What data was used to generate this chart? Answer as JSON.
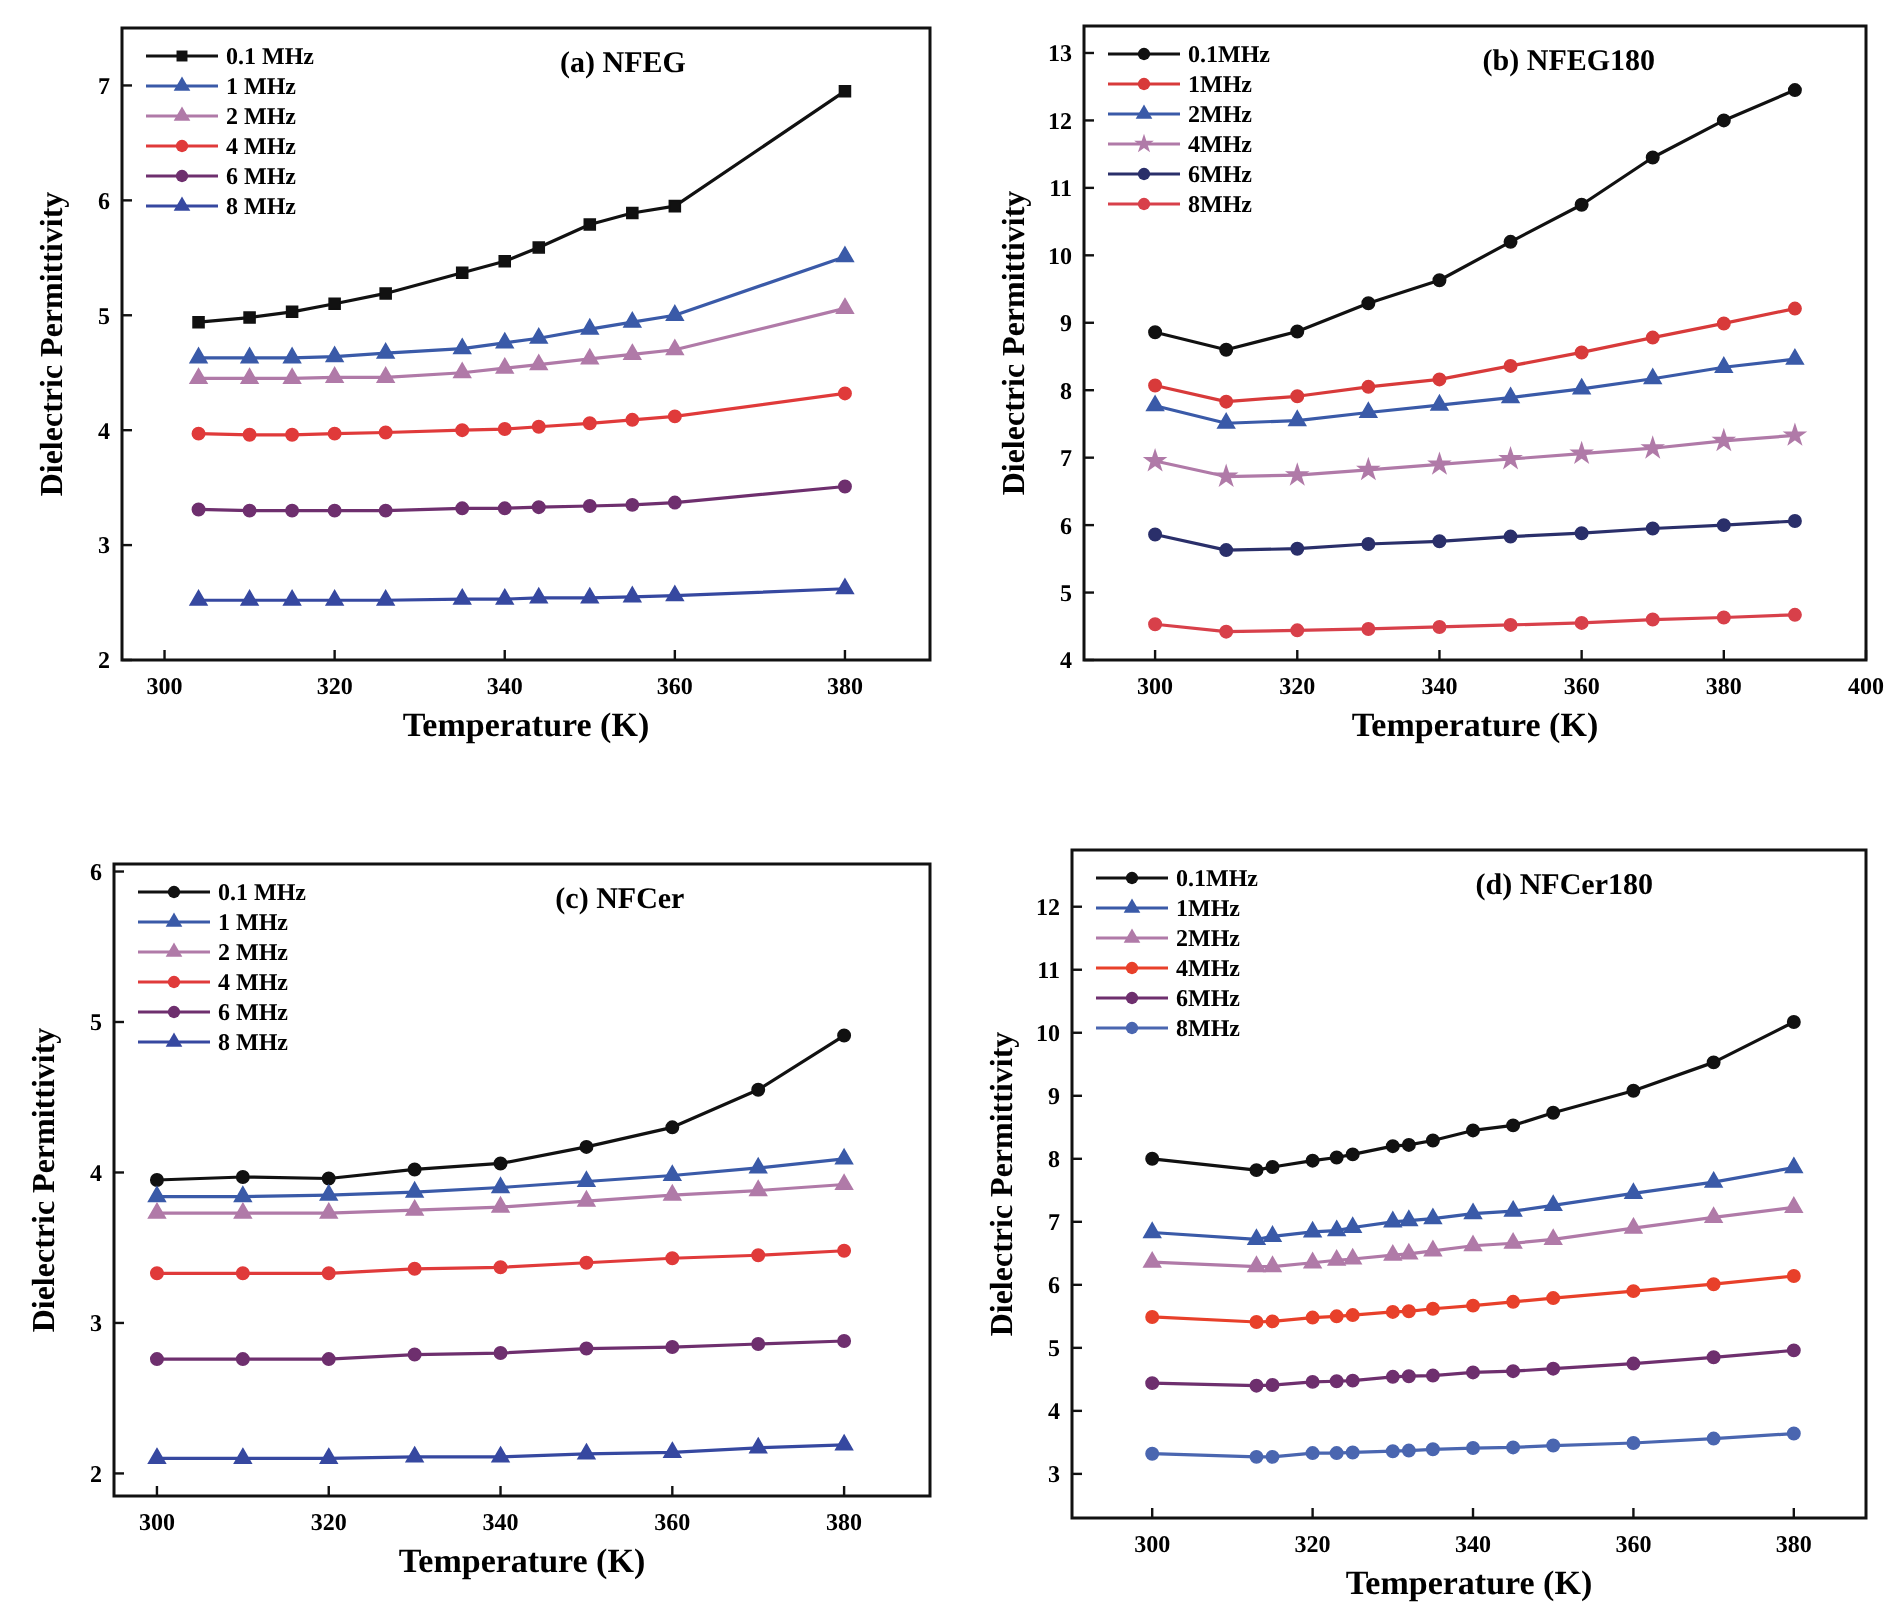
{
  "chart_data": [
    {
      "type": "line",
      "title": "(a) NFEG",
      "xlabel": "Temperature (K)",
      "ylabel": "Dielectric Permittivity",
      "xlim": [
        295,
        390
      ],
      "xticks": [
        300,
        320,
        340,
        360,
        380
      ],
      "ylim": [
        2,
        7.5
      ],
      "yticks": [
        2,
        3,
        4,
        5,
        6,
        7
      ],
      "legend": "top left",
      "line_style": "solid",
      "x": [
        304,
        310,
        315,
        320,
        326,
        335,
        340,
        344,
        350,
        355,
        360,
        380
      ],
      "series": [
        {
          "name": "0.1 MHz",
          "color": "#111111",
          "marker": "square",
          "values": [
            4.94,
            4.98,
            5.03,
            5.1,
            5.19,
            5.37,
            5.47,
            5.59,
            5.79,
            5.89,
            5.95,
            6.95
          ]
        },
        {
          "name": "1 MHz",
          "color": "#3a5aa8",
          "marker": "triangle",
          "values": [
            4.63,
            4.63,
            4.63,
            4.64,
            4.67,
            4.71,
            4.76,
            4.8,
            4.88,
            4.94,
            5.0,
            5.51
          ]
        },
        {
          "name": "2 MHz",
          "color": "#b07aa8",
          "marker": "triangle",
          "values": [
            4.45,
            4.45,
            4.45,
            4.46,
            4.46,
            4.5,
            4.54,
            4.57,
            4.62,
            4.66,
            4.7,
            5.06
          ]
        },
        {
          "name": "4 MHz",
          "color": "#e03a3a",
          "marker": "circle",
          "values": [
            3.97,
            3.96,
            3.96,
            3.97,
            3.98,
            4.0,
            4.01,
            4.03,
            4.06,
            4.09,
            4.12,
            4.32
          ]
        },
        {
          "name": "6 MHz",
          "color": "#6e2f6e",
          "marker": "circle",
          "values": [
            3.31,
            3.3,
            3.3,
            3.3,
            3.3,
            3.32,
            3.32,
            3.33,
            3.34,
            3.35,
            3.37,
            3.51
          ]
        },
        {
          "name": "8 MHz",
          "color": "#3648a0",
          "marker": "triangle",
          "values": [
            2.52,
            2.52,
            2.52,
            2.52,
            2.52,
            2.53,
            2.53,
            2.54,
            2.54,
            2.55,
            2.56,
            2.62
          ]
        }
      ]
    },
    {
      "type": "line",
      "title": "(b) NFEG180",
      "xlabel": "Temperature (K)",
      "ylabel": "Dielectric Permittivity",
      "xlim": [
        290,
        400
      ],
      "xticks": [
        300,
        320,
        340,
        360,
        380,
        400
      ],
      "ylim": [
        4,
        13.4
      ],
      "yticks": [
        4,
        5,
        6,
        7,
        8,
        9,
        10,
        11,
        12,
        13
      ],
      "legend": "top left",
      "line_style": "solid",
      "x": [
        300,
        310,
        320,
        330,
        340,
        350,
        360,
        370,
        380,
        390
      ],
      "series": [
        {
          "name": "0.1MHz",
          "color": "#111111",
          "marker": "circle",
          "values": [
            8.86,
            8.6,
            8.87,
            9.29,
            9.63,
            10.2,
            10.75,
            11.45,
            12.0,
            12.45
          ]
        },
        {
          "name": "1MHz",
          "color": "#d83a3a",
          "marker": "circle",
          "values": [
            8.07,
            7.83,
            7.91,
            8.05,
            8.16,
            8.36,
            8.56,
            8.78,
            8.99,
            9.21
          ]
        },
        {
          "name": "2MHz",
          "color": "#3a5aa8",
          "marker": "triangle",
          "values": [
            7.77,
            7.51,
            7.55,
            7.67,
            7.78,
            7.89,
            8.02,
            8.17,
            8.34,
            8.46
          ]
        },
        {
          "name": "4MHz",
          "color": "#b07aa8",
          "marker": "star",
          "values": [
            6.95,
            6.72,
            6.74,
            6.82,
            6.9,
            6.98,
            7.06,
            7.14,
            7.25,
            7.33
          ]
        },
        {
          "name": "6MHz",
          "color": "#2a2f6a",
          "marker": "circle",
          "values": [
            5.86,
            5.63,
            5.65,
            5.72,
            5.76,
            5.83,
            5.88,
            5.95,
            6.0,
            6.06
          ]
        },
        {
          "name": "8MHz",
          "color": "#d8404a",
          "marker": "circle",
          "values": [
            4.53,
            4.42,
            4.44,
            4.46,
            4.49,
            4.52,
            4.55,
            4.6,
            4.63,
            4.67
          ]
        }
      ]
    },
    {
      "type": "line",
      "title": "(c) NFCer",
      "xlabel": "Temperature (K)",
      "ylabel": "Dielectric Permittivity",
      "xlim": [
        295,
        390
      ],
      "xticks": [
        300,
        320,
        340,
        360,
        380
      ],
      "ylim": [
        1.85,
        6.05
      ],
      "yticks": [
        2,
        3,
        4,
        5,
        6
      ],
      "legend": "top left",
      "line_style": "solid",
      "x": [
        300,
        310,
        320,
        330,
        340,
        350,
        360,
        370,
        380
      ],
      "series": [
        {
          "name": "0.1 MHz",
          "color": "#111111",
          "marker": "circle",
          "values": [
            3.95,
            3.97,
            3.96,
            4.02,
            4.06,
            4.17,
            4.3,
            4.55,
            4.91
          ]
        },
        {
          "name": "1 MHz",
          "color": "#3a5aa8",
          "marker": "triangle",
          "values": [
            3.84,
            3.84,
            3.85,
            3.87,
            3.9,
            3.94,
            3.98,
            4.03,
            4.09
          ]
        },
        {
          "name": "2 MHz",
          "color": "#b07aa8",
          "marker": "triangle",
          "values": [
            3.73,
            3.73,
            3.73,
            3.75,
            3.77,
            3.81,
            3.85,
            3.88,
            3.92
          ]
        },
        {
          "name": "4 MHz",
          "color": "#e03a3a",
          "marker": "circle",
          "values": [
            3.33,
            3.33,
            3.33,
            3.36,
            3.37,
            3.4,
            3.43,
            3.45,
            3.48
          ]
        },
        {
          "name": "6 MHz",
          "color": "#6e2f6e",
          "marker": "circle",
          "values": [
            2.76,
            2.76,
            2.76,
            2.79,
            2.8,
            2.83,
            2.84,
            2.86,
            2.88
          ]
        },
        {
          "name": "8 MHz",
          "color": "#3648a0",
          "marker": "triangle",
          "values": [
            2.1,
            2.1,
            2.1,
            2.11,
            2.11,
            2.13,
            2.14,
            2.17,
            2.19
          ]
        }
      ]
    },
    {
      "type": "line",
      "title": "(d) NFCer180",
      "xlabel": "Temperature (K)",
      "ylabel": "Dielectric Permittivity",
      "xlim": [
        290,
        389
      ],
      "xticks": [
        300,
        320,
        340,
        360,
        380
      ],
      "ylim": [
        2.3,
        12.9
      ],
      "yticks": [
        3,
        4,
        5,
        6,
        7,
        8,
        9,
        10,
        11,
        12
      ],
      "legend": "top left",
      "line_style": "solid",
      "x": [
        300,
        313,
        315,
        320,
        323,
        325,
        330,
        332,
        335,
        340,
        345,
        350,
        360,
        370,
        380
      ],
      "series": [
        {
          "name": "0.1MHz",
          "color": "#111111",
          "marker": "circle",
          "values": [
            8.0,
            7.82,
            7.87,
            7.97,
            8.02,
            8.07,
            8.2,
            8.22,
            8.29,
            8.45,
            8.53,
            8.73,
            9.08,
            9.53,
            10.17
          ]
        },
        {
          "name": "1MHz",
          "color": "#3a5aa8",
          "marker": "triangle",
          "values": [
            6.83,
            6.72,
            6.77,
            6.84,
            6.86,
            6.91,
            7.0,
            7.02,
            7.05,
            7.13,
            7.17,
            7.26,
            7.45,
            7.63,
            7.86
          ]
        },
        {
          "name": "2MHz",
          "color": "#b07aa8",
          "marker": "triangle",
          "values": [
            6.36,
            6.29,
            6.29,
            6.35,
            6.39,
            6.41,
            6.47,
            6.49,
            6.54,
            6.62,
            6.66,
            6.72,
            6.9,
            7.07,
            7.23
          ]
        },
        {
          "name": "4MHz",
          "color": "#e8402a",
          "marker": "circle",
          "values": [
            5.49,
            5.41,
            5.42,
            5.48,
            5.5,
            5.52,
            5.57,
            5.58,
            5.62,
            5.67,
            5.73,
            5.79,
            5.9,
            6.01,
            6.14
          ]
        },
        {
          "name": "6MHz",
          "color": "#6e2f6e",
          "marker": "circle",
          "values": [
            4.44,
            4.4,
            4.41,
            4.46,
            4.47,
            4.48,
            4.54,
            4.55,
            4.56,
            4.61,
            4.63,
            4.67,
            4.75,
            4.85,
            4.96
          ]
        },
        {
          "name": "8MHz",
          "color": "#4a66b0",
          "marker": "circle",
          "values": [
            3.32,
            3.27,
            3.27,
            3.33,
            3.33,
            3.34,
            3.36,
            3.37,
            3.39,
            3.41,
            3.42,
            3.45,
            3.49,
            3.56,
            3.64
          ]
        }
      ]
    }
  ]
}
